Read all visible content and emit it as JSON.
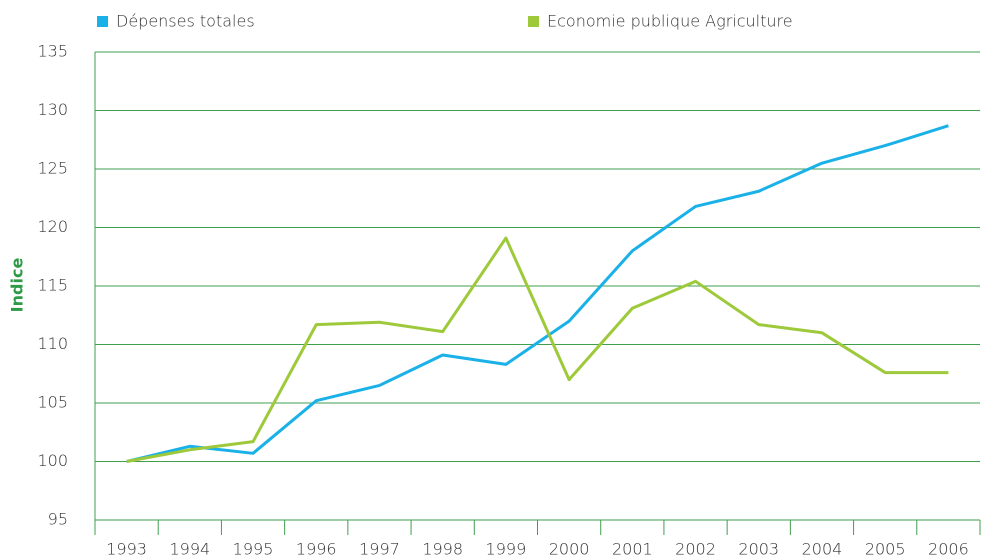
{
  "chart_data": {
    "type": "line",
    "y_label": "Indice",
    "categories": [
      "1993",
      "1994",
      "1995",
      "1996",
      "1997",
      "1998",
      "1999",
      "2000",
      "2001",
      "2002",
      "2003",
      "2004",
      "2005",
      "2006"
    ],
    "series": [
      {
        "name": "Dépenses totales",
        "color": "#1ab0e8",
        "values": [
          100,
          101.3,
          100.7,
          105.2,
          106.5,
          109.1,
          108.3,
          112,
          118,
          121.8,
          123.1,
          125.5,
          127,
          128.7
        ]
      },
      {
        "name": "Economie publique Agriculture",
        "color": "#9dc93a",
        "values": [
          100,
          101,
          101.7,
          111.7,
          111.9,
          111.1,
          119.1,
          107,
          113.1,
          115.4,
          111.7,
          111,
          107.6,
          107.6
        ]
      }
    ],
    "ylim": [
      95,
      135
    ],
    "yticks": [
      95,
      100,
      105,
      110,
      115,
      120,
      125,
      130,
      135
    ],
    "grid": true,
    "grid_color": "#3f9f4f",
    "legend": "top"
  }
}
